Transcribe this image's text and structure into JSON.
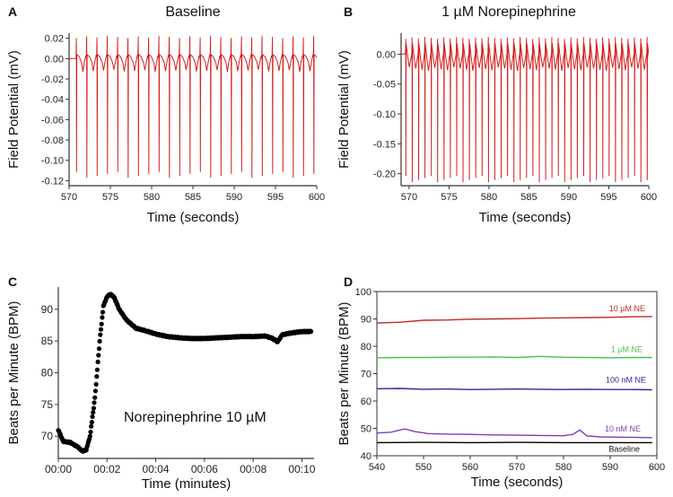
{
  "chart_data": [
    {
      "panel": "A",
      "type": "line",
      "title": "Baseline",
      "xlabel": "Time (seconds)",
      "ylabel": "Field Potential (mV)",
      "xlim": [
        570,
        600
      ],
      "ylim": [
        -0.125,
        0.025
      ],
      "xticks": [
        570,
        575,
        580,
        585,
        590,
        595,
        600
      ],
      "yticks": [
        "0.02",
        "0.00",
        "-0.02",
        "-0.04",
        "-0.06",
        "-0.08",
        "-0.10",
        "-0.12"
      ],
      "ytick_values": [
        0.02,
        0.0,
        -0.02,
        -0.04,
        -0.06,
        -0.08,
        -0.1,
        -0.12
      ],
      "beat_interval_s": 1.25,
      "first_beat_s": 570.9,
      "spike_peak_mV": 0.022,
      "spike_trough_mV": -0.115,
      "series_color": "#d42020"
    },
    {
      "panel": "B",
      "type": "line",
      "title": "1 µM Norepinephrine",
      "xlabel": "Time (seconds)",
      "ylabel": "Field Potential (mV)",
      "xlim": [
        569,
        600
      ],
      "ylim": [
        -0.22,
        0.035
      ],
      "xticks": [
        570,
        575,
        580,
        585,
        590,
        595,
        600
      ],
      "yticks": [
        "0.00",
        "-0.05",
        "-0.10",
        "-0.15",
        "-0.20"
      ],
      "ytick_values": [
        0.0,
        -0.05,
        -0.1,
        -0.15,
        -0.2
      ],
      "beat_interval_s": 0.795,
      "first_beat_s": 569.6,
      "spike_peak_mV": 0.028,
      "spike_trough_mV": -0.21,
      "series_color": "#d42020"
    },
    {
      "panel": "C",
      "type": "scatter",
      "xlabel": "Time (minutes)",
      "ylabel": "Beats per Minute (BPM)",
      "annotation": "Norepinephrine 10 µM",
      "xlim": [
        0,
        10.5
      ],
      "ylim": [
        66.5,
        93.5
      ],
      "xticks": [
        "00:00",
        "00:02",
        "00:04",
        "00:06",
        "00:08",
        "00:10"
      ],
      "xtick_values": [
        0,
        2,
        4,
        6,
        8,
        10
      ],
      "yticks": [
        70,
        75,
        80,
        85,
        90
      ],
      "x": [
        0.0,
        0.2,
        0.5,
        0.8,
        1.0,
        1.15,
        1.3,
        1.5,
        1.7,
        1.85,
        2.0,
        2.15,
        2.3,
        2.5,
        2.8,
        3.2,
        3.6,
        4.0,
        4.5,
        5.0,
        5.5,
        6.0,
        6.5,
        7.0,
        7.5,
        8.0,
        8.5,
        8.8,
        9.0,
        9.2,
        9.6,
        10.0,
        10.4
      ],
      "y": [
        71.0,
        69.2,
        69.0,
        68.3,
        67.6,
        67.9,
        70.0,
        76.0,
        85.0,
        90.5,
        92.0,
        92.4,
        91.8,
        90.0,
        88.3,
        87.0,
        86.6,
        86.1,
        85.7,
        85.5,
        85.4,
        85.4,
        85.5,
        85.6,
        85.7,
        85.7,
        85.8,
        85.4,
        84.9,
        86.0,
        86.3,
        86.5,
        86.5
      ],
      "series_color": "#000000"
    },
    {
      "panel": "D",
      "type": "line",
      "xlabel": "Time (seconds)",
      "ylabel": "Beats per Minute (BPM)",
      "xlim": [
        540,
        600
      ],
      "ylim": [
        40,
        100
      ],
      "xticks": [
        540,
        550,
        560,
        570,
        580,
        590,
        600
      ],
      "yticks": [
        40,
        50,
        60,
        70,
        80,
        90,
        100
      ],
      "series": [
        {
          "name": "10 µM NE",
          "color": "#c0262a",
          "x": [
            540,
            545,
            550,
            555,
            560,
            565,
            570,
            575,
            580,
            585,
            590,
            595,
            599
          ],
          "values": [
            88.5,
            88.8,
            89.5,
            89.6,
            89.9,
            90.0,
            90.1,
            90.3,
            90.4,
            90.5,
            90.6,
            90.8,
            90.9
          ]
        },
        {
          "name": "1 µM NE",
          "color": "#4fbf4f",
          "x": [
            540,
            545,
            550,
            555,
            560,
            565,
            570,
            575,
            580,
            585,
            590,
            595,
            599
          ],
          "values": [
            75.8,
            75.9,
            75.9,
            76.0,
            76.0,
            76.1,
            75.9,
            76.3,
            76.0,
            75.9,
            75.8,
            75.9,
            75.9
          ]
        },
        {
          "name": "100 nM NE",
          "color": "#2a2a9a",
          "x": [
            540,
            545,
            550,
            555,
            560,
            565,
            570,
            575,
            580,
            585,
            590,
            595,
            599
          ],
          "values": [
            64.5,
            64.6,
            64.3,
            64.4,
            64.2,
            64.3,
            64.4,
            64.3,
            64.2,
            64.3,
            64.2,
            64.2,
            64.1
          ]
        },
        {
          "name": "10 nM NE",
          "color": "#7a3fb0",
          "x": [
            540,
            543,
            546,
            548,
            551,
            555,
            560,
            565,
            570,
            575,
            580,
            582,
            583.5,
            585,
            588,
            592,
            596,
            599
          ],
          "values": [
            48.3,
            48.6,
            49.8,
            48.9,
            48.1,
            47.9,
            47.8,
            47.6,
            47.5,
            47.4,
            47.3,
            47.8,
            49.4,
            47.2,
            46.9,
            46.8,
            46.7,
            46.6
          ]
        },
        {
          "name": "Baseline",
          "color": "#000000",
          "x": [
            540,
            550,
            560,
            570,
            580,
            590,
            599
          ],
          "values": [
            44.8,
            44.9,
            44.8,
            44.9,
            44.8,
            44.8,
            44.8
          ]
        }
      ]
    }
  ]
}
